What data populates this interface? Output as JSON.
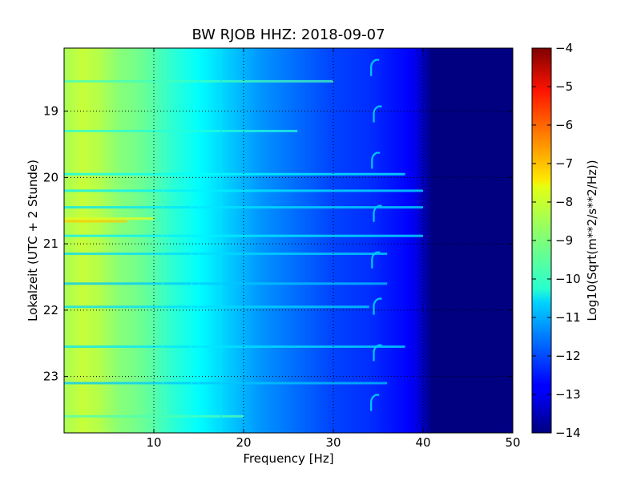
{
  "chart_data": {
    "type": "heatmap",
    "title": "BW RJOB HHZ: 2018-09-07",
    "xlabel": "Frequency [Hz]",
    "ylabel": "Lokalzeit (UTC + 2 Stunde)",
    "xlim": [
      0,
      50
    ],
    "ylim": [
      18.05,
      23.85
    ],
    "y_inverted": true,
    "x_ticks": [
      10,
      20,
      30,
      40,
      50
    ],
    "x_tick_labels": [
      "10",
      "20",
      "30",
      "40",
      "50"
    ],
    "y_ticks": [
      19,
      20,
      21,
      22,
      23
    ],
    "y_tick_labels": [
      "19",
      "20",
      "21",
      "22",
      "23"
    ],
    "grid": true,
    "colorscale": "jet",
    "colorbar": {
      "label": "Log10(Sqrt(m**2/s**2/Hz))",
      "range": [
        -14,
        -4
      ],
      "ticks": [
        -4,
        -5,
        -6,
        -7,
        -8,
        -9,
        -10,
        -11,
        -12,
        -13,
        -14
      ],
      "tick_labels": [
        "−4",
        "−5",
        "−6",
        "−7",
        "−8",
        "−9",
        "−10",
        "−11",
        "−12",
        "−13",
        "−14"
      ]
    },
    "spectral_profile": {
      "frequency_hz": [
        0,
        2,
        4,
        6,
        8,
        10,
        12,
        14,
        16,
        18,
        20,
        22,
        24,
        26,
        28,
        30,
        32,
        34,
        36,
        38,
        39,
        40,
        41,
        50
      ],
      "level": [
        -8.6,
        -8.3,
        -8.5,
        -8.9,
        -9.1,
        -9.4,
        -9.8,
        -10.1,
        -10.4,
        -10.7,
        -11.0,
        -11.3,
        -11.5,
        -11.7,
        -11.9,
        -12.1,
        -12.2,
        -12.3,
        -12.5,
        -12.7,
        -12.9,
        -13.4,
        -14.0,
        -14.0
      ]
    },
    "horizontal_bands": [
      {
        "time": 20.66,
        "fmax_hz": 7,
        "level": -7.2
      },
      {
        "time": 20.62,
        "fmax_hz": 10,
        "level": -8.0
      },
      {
        "time": 18.55,
        "fmax_hz": 30,
        "level": -9.6
      },
      {
        "time": 19.3,
        "fmax_hz": 26,
        "level": -9.9
      },
      {
        "time": 19.95,
        "fmax_hz": 38,
        "level": -10.2
      },
      {
        "time": 20.2,
        "fmax_hz": 40,
        "level": -10.4
      },
      {
        "time": 20.45,
        "fmax_hz": 40,
        "level": -10.5
      },
      {
        "time": 20.88,
        "fmax_hz": 40,
        "level": -10.4
      },
      {
        "time": 21.15,
        "fmax_hz": 36,
        "level": -10.6
      },
      {
        "time": 21.6,
        "fmax_hz": 36,
        "level": -10.8
      },
      {
        "time": 21.95,
        "fmax_hz": 34,
        "level": -10.6
      },
      {
        "time": 22.55,
        "fmax_hz": 38,
        "level": -10.5
      },
      {
        "time": 23.1,
        "fmax_hz": 36,
        "level": -10.8
      },
      {
        "time": 23.6,
        "fmax_hz": 20,
        "level": -9.5
      }
    ],
    "vertical_lines": [
      {
        "freq_hz": 11,
        "level": -9.7
      },
      {
        "freq_hz": 14.2,
        "level": -10.1
      },
      {
        "freq_hz": 15,
        "level": -10.3
      },
      {
        "freq_hz": 17.5,
        "level": -10.5
      }
    ],
    "tonal_events": [
      {
        "time": 18.3,
        "freq_hz": 34.3,
        "level": -10.8
      },
      {
        "time": 19.0,
        "freq_hz": 34.6,
        "level": -10.8
      },
      {
        "time": 19.7,
        "freq_hz": 34.4,
        "level": -10.8
      },
      {
        "time": 20.5,
        "freq_hz": 34.6,
        "level": -10.8
      },
      {
        "time": 21.2,
        "freq_hz": 34.4,
        "level": -10.8
      },
      {
        "time": 21.9,
        "freq_hz": 34.6,
        "level": -10.8
      },
      {
        "time": 22.6,
        "freq_hz": 34.6,
        "level": -10.8
      },
      {
        "time": 23.35,
        "freq_hz": 34.3,
        "level": -10.8
      }
    ]
  }
}
